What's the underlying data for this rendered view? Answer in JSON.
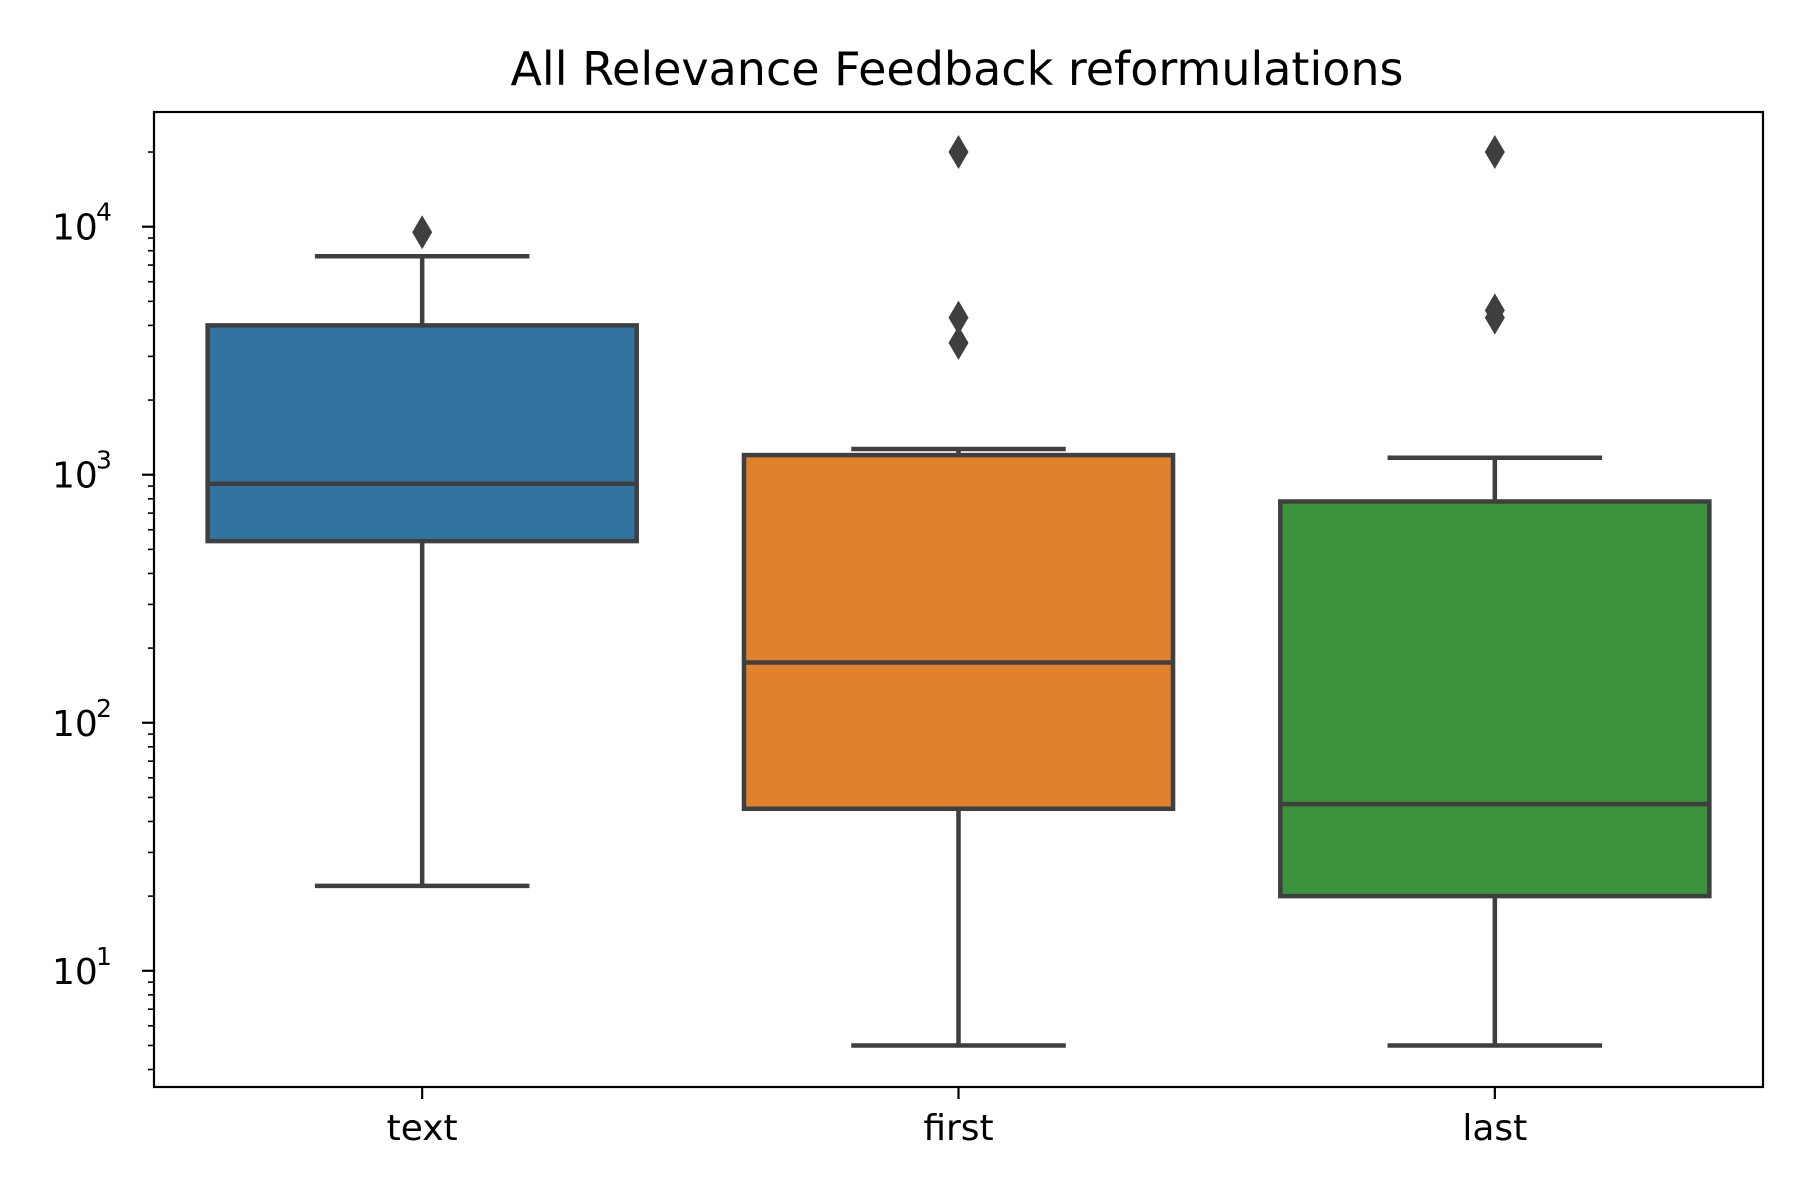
{
  "chart_data": {
    "type": "box",
    "title": "All Relevance Feedback reformulations",
    "xlabel": "",
    "ylabel": "",
    "yscale": "log",
    "ylim": [
      3.4,
      29000
    ],
    "grid": false,
    "categories": [
      "text",
      "first",
      "last"
    ],
    "yticks": [
      {
        "value": 10,
        "base": "10",
        "exp": "1"
      },
      {
        "value": 100,
        "base": "10",
        "exp": "2"
      },
      {
        "value": 1000,
        "base": "10",
        "exp": "3"
      },
      {
        "value": 10000,
        "base": "10",
        "exp": "4"
      }
    ],
    "series": [
      {
        "category": "text",
        "color": "#3274a1",
        "whisker_low": 22,
        "q1": 540,
        "median": 920,
        "q3": 4000,
        "whisker_high": 7600,
        "outliers": [
          9500
        ]
      },
      {
        "category": "first",
        "color": "#e1812c",
        "whisker_low": 5,
        "q1": 45,
        "median": 175,
        "q3": 1200,
        "whisker_high": 1270,
        "outliers": [
          3400,
          4300,
          20000
        ]
      },
      {
        "category": "last",
        "color": "#3a923a",
        "whisker_low": 5,
        "q1": 20,
        "median": 47,
        "q3": 780,
        "whisker_high": 1170,
        "outliers": [
          4300,
          4600,
          20000
        ]
      }
    ]
  }
}
